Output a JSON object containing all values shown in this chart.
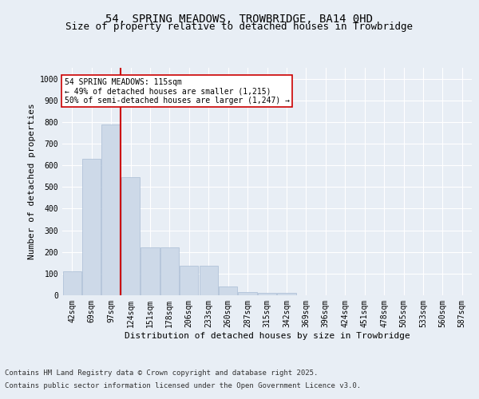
{
  "title_line1": "54, SPRING MEADOWS, TROWBRIDGE, BA14 0HD",
  "title_line2": "Size of property relative to detached houses in Trowbridge",
  "xlabel": "Distribution of detached houses by size in Trowbridge",
  "ylabel": "Number of detached properties",
  "footer_line1": "Contains HM Land Registry data © Crown copyright and database right 2025.",
  "footer_line2": "Contains public sector information licensed under the Open Government Licence v3.0.",
  "bar_labels": [
    "42sqm",
    "69sqm",
    "97sqm",
    "124sqm",
    "151sqm",
    "178sqm",
    "206sqm",
    "233sqm",
    "260sqm",
    "287sqm",
    "315sqm",
    "342sqm",
    "369sqm",
    "396sqm",
    "424sqm",
    "451sqm",
    "478sqm",
    "505sqm",
    "533sqm",
    "560sqm",
    "587sqm"
  ],
  "bar_values": [
    110,
    630,
    790,
    545,
    220,
    220,
    135,
    135,
    40,
    15,
    10,
    10,
    0,
    0,
    0,
    0,
    0,
    0,
    0,
    0,
    0
  ],
  "bar_color": "#cdd9e8",
  "bar_edge_color": "#a8bcd4",
  "vline_x": 2.5,
  "vline_color": "#cc0000",
  "annotation_text": "54 SPRING MEADOWS: 115sqm\n← 49% of detached houses are smaller (1,215)\n50% of semi-detached houses are larger (1,247) →",
  "annotation_box_edge": "#cc0000",
  "ylim": [
    0,
    1050
  ],
  "yticks": [
    0,
    100,
    200,
    300,
    400,
    500,
    600,
    700,
    800,
    900,
    1000
  ],
  "background_color": "#e8eef5",
  "plot_bg_color": "#e8eef5",
  "grid_color": "#ffffff",
  "title_fontsize": 10,
  "subtitle_fontsize": 9,
  "axis_label_fontsize": 8,
  "tick_fontsize": 7,
  "annotation_fontsize": 7,
  "footer_fontsize": 6.5
}
